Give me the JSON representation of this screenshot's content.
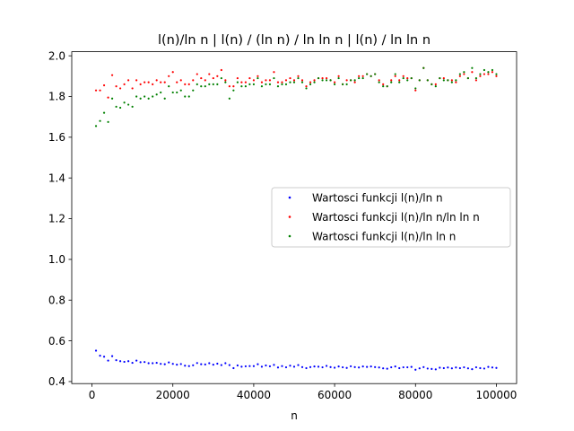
{
  "chart_data": {
    "type": "scatter",
    "title": "l(n)/ln n | l(n) / (ln n) / ln ln n | l(n) / ln ln n",
    "xlabel": "n",
    "ylabel": "",
    "xlim": [
      -5000,
      105000
    ],
    "ylim": [
      0.39,
      2.02
    ],
    "xticks": [
      0,
      20000,
      40000,
      60000,
      80000,
      100000
    ],
    "xtick_labels": [
      "0",
      "20000",
      "40000",
      "60000",
      "80000",
      "100000"
    ],
    "yticks": [
      0.4,
      0.6,
      0.8,
      1.0,
      1.2,
      1.4,
      1.6,
      1.8,
      2.0
    ],
    "ytick_labels": [
      "0.4",
      "0.6",
      "0.8",
      "1.0",
      "1.2",
      "1.4",
      "1.6",
      "1.8",
      "2.0"
    ],
    "grid": false,
    "legend_position": "center-right",
    "x": {
      "start": 1000,
      "step": 1000,
      "count": 100
    },
    "series": [
      {
        "name": "Wartosci funkcji l(n)/ln n",
        "color": "#0000ff",
        "values": [
          0.552,
          0.527,
          0.522,
          0.503,
          0.525,
          0.505,
          0.5,
          0.497,
          0.5,
          0.492,
          0.503,
          0.495,
          0.496,
          0.49,
          0.49,
          0.492,
          0.487,
          0.485,
          0.494,
          0.487,
          0.483,
          0.486,
          0.478,
          0.476,
          0.48,
          0.491,
          0.485,
          0.484,
          0.49,
          0.483,
          0.488,
          0.481,
          0.49,
          0.481,
          0.466,
          0.479,
          0.473,
          0.475,
          0.476,
          0.476,
          0.485,
          0.473,
          0.479,
          0.475,
          0.482,
          0.469,
          0.476,
          0.47,
          0.478,
          0.473,
          0.481,
          0.471,
          0.466,
          0.471,
          0.474,
          0.473,
          0.47,
          0.477,
          0.471,
          0.468,
          0.474,
          0.47,
          0.467,
          0.475,
          0.471,
          0.469,
          0.474,
          0.472,
          0.474,
          0.471,
          0.469,
          0.465,
          0.463,
          0.47,
          0.474,
          0.466,
          0.47,
          0.47,
          0.472,
          0.458,
          0.465,
          0.471,
          0.464,
          0.462,
          0.46,
          0.468,
          0.466,
          0.469,
          0.465,
          0.469,
          0.466,
          0.47,
          0.465,
          0.461,
          0.47,
          0.466,
          0.464,
          0.472,
          0.469,
          0.467
        ]
      },
      {
        "name": "Wartosci funkcji l(n)/ln n/ln ln n",
        "color": "#ff0000",
        "values": [
          1.83,
          1.83,
          1.855,
          1.795,
          1.905,
          1.85,
          1.84,
          1.86,
          1.88,
          1.84,
          1.88,
          1.86,
          1.87,
          1.87,
          1.86,
          1.88,
          1.87,
          1.87,
          1.9,
          1.92,
          1.87,
          1.88,
          1.86,
          1.86,
          1.88,
          1.91,
          1.89,
          1.88,
          1.91,
          1.89,
          1.9,
          1.93,
          1.88,
          1.85,
          1.85,
          1.89,
          1.87,
          1.87,
          1.89,
          1.88,
          1.9,
          1.87,
          1.88,
          1.88,
          1.92,
          1.87,
          1.87,
          1.88,
          1.89,
          1.88,
          1.9,
          1.88,
          1.85,
          1.87,
          1.88,
          1.89,
          1.89,
          1.89,
          1.88,
          1.87,
          1.9,
          1.86,
          1.88,
          1.88,
          1.87,
          1.9,
          1.9,
          1.91,
          1.9,
          1.91,
          1.88,
          1.86,
          1.85,
          1.88,
          1.9,
          1.88,
          1.9,
          1.89,
          1.89,
          1.83,
          1.88,
          1.94,
          1.88,
          1.86,
          1.86,
          1.89,
          1.89,
          1.88,
          1.88,
          1.87,
          1.9,
          1.91,
          1.89,
          1.92,
          1.88,
          1.9,
          1.91,
          1.91,
          1.92,
          1.9
        ]
      },
      {
        "name": "Wartosci funkcji l(n)/ln ln n",
        "color": "#008000",
        "values": [
          1.655,
          1.68,
          1.72,
          1.675,
          1.79,
          1.75,
          1.745,
          1.77,
          1.76,
          1.75,
          1.8,
          1.79,
          1.8,
          1.79,
          1.8,
          1.81,
          1.82,
          1.79,
          1.85,
          1.82,
          1.82,
          1.83,
          1.8,
          1.8,
          1.83,
          1.86,
          1.85,
          1.85,
          1.86,
          1.86,
          1.86,
          1.89,
          1.87,
          1.79,
          1.83,
          1.87,
          1.85,
          1.85,
          1.86,
          1.86,
          1.89,
          1.85,
          1.86,
          1.86,
          1.89,
          1.85,
          1.86,
          1.86,
          1.87,
          1.87,
          1.89,
          1.87,
          1.84,
          1.86,
          1.87,
          1.89,
          1.88,
          1.88,
          1.88,
          1.86,
          1.89,
          1.86,
          1.86,
          1.88,
          1.88,
          1.89,
          1.89,
          1.91,
          1.9,
          1.91,
          1.87,
          1.85,
          1.85,
          1.87,
          1.91,
          1.87,
          1.89,
          1.88,
          1.89,
          1.84,
          1.88,
          1.94,
          1.88,
          1.86,
          1.85,
          1.89,
          1.88,
          1.88,
          1.87,
          1.88,
          1.91,
          1.92,
          1.89,
          1.94,
          1.89,
          1.91,
          1.93,
          1.92,
          1.93,
          1.91
        ]
      }
    ]
  }
}
